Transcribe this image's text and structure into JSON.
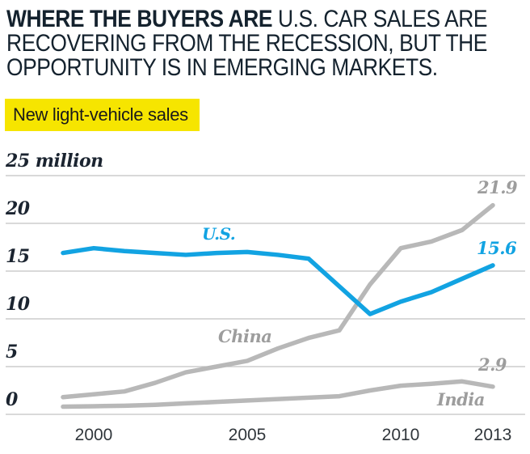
{
  "header": {
    "title_bold": "WHERE THE BUYERS ARE",
    "title_rest_line1": " U.S. CAR SALES ARE",
    "title_line2": "RECOVERING FROM THE RECESSION, BUT THE",
    "title_line3": "OPPORTUNITY IS IN EMERGING MARKETS."
  },
  "legend": {
    "label": "New light-vehicle sales",
    "highlight_color": "#f6e500"
  },
  "colors": {
    "us_line": "#12a3e2",
    "emerging_line": "#b8b8b8",
    "gray_label": "#9d9d9d",
    "grid": "#c2c2c2",
    "title_text": "#14222e"
  },
  "chart_data": {
    "type": "line",
    "title": "New light-vehicle sales",
    "unit": "million vehicles",
    "ylim": [
      0,
      25
    ],
    "grid": "horizontal",
    "legend_position": "inline-labels",
    "x": [
      1999,
      2000,
      2001,
      2002,
      2003,
      2004,
      2005,
      2006,
      2007,
      2008,
      2009,
      2010,
      2011,
      2012,
      2013
    ],
    "y_ticks": [
      {
        "value": 25,
        "label": "25 million"
      },
      {
        "value": 20,
        "label": "20"
      },
      {
        "value": 15,
        "label": "15"
      },
      {
        "value": 10,
        "label": "10"
      },
      {
        "value": 5,
        "label": "5"
      },
      {
        "value": 0,
        "label": "0"
      }
    ],
    "x_ticks": [
      {
        "value": 2000,
        "label": "2000"
      },
      {
        "value": 2005,
        "label": "2005"
      },
      {
        "value": 2010,
        "label": "2010"
      },
      {
        "value": 2013,
        "label": "2013"
      }
    ],
    "series": [
      {
        "name": "U.S.",
        "color": "#12a3e2",
        "end_label": "15.6",
        "values": [
          16.9,
          17.4,
          17.1,
          16.9,
          16.7,
          16.9,
          17.0,
          16.7,
          16.3,
          13.4,
          10.5,
          11.8,
          12.8,
          14.2,
          15.6
        ]
      },
      {
        "name": "China",
        "color": "#b8b8b8",
        "end_label": "21.9",
        "values": [
          1.8,
          2.1,
          2.4,
          3.3,
          4.4,
          5.0,
          5.6,
          6.9,
          8.0,
          8.8,
          13.6,
          17.4,
          18.1,
          19.3,
          21.9
        ]
      },
      {
        "name": "India",
        "color": "#b8b8b8",
        "end_label": "2.9",
        "values": [
          0.8,
          0.85,
          0.9,
          1.0,
          1.15,
          1.3,
          1.45,
          1.6,
          1.75,
          1.9,
          2.5,
          3.0,
          3.2,
          3.45,
          2.9
        ]
      }
    ]
  }
}
